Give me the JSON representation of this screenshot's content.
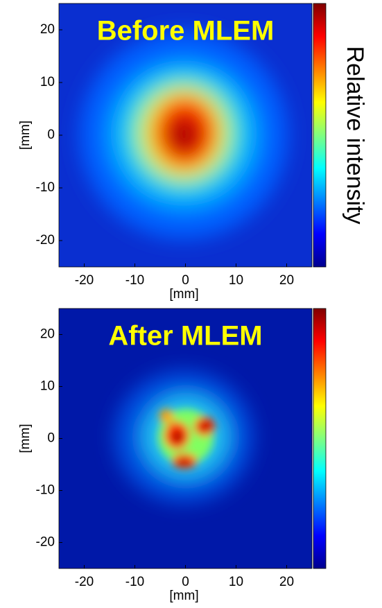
{
  "chart_data": [
    {
      "type": "heatmap",
      "title": "Before MLEM",
      "xlabel": "[mm]",
      "ylabel": "[mm]",
      "xlim": [
        -25,
        25
      ],
      "ylim": [
        -25,
        25
      ],
      "xticks": [
        -20,
        -10,
        0,
        10,
        20
      ],
      "yticks": [
        -20,
        -10,
        0,
        10,
        20
      ],
      "colormap": "jet",
      "colorbar_label": "Relative intensity"
    },
    {
      "type": "heatmap",
      "title": "After MLEM",
      "xlabel": "[mm]",
      "ylabel": "[mm]",
      "xlim": [
        -25,
        25
      ],
      "ylim": [
        -25,
        25
      ],
      "xticks": [
        -20,
        -10,
        0,
        10,
        20
      ],
      "yticks": [
        -20,
        -10,
        0,
        10,
        20
      ],
      "colormap": "jet"
    }
  ]
}
